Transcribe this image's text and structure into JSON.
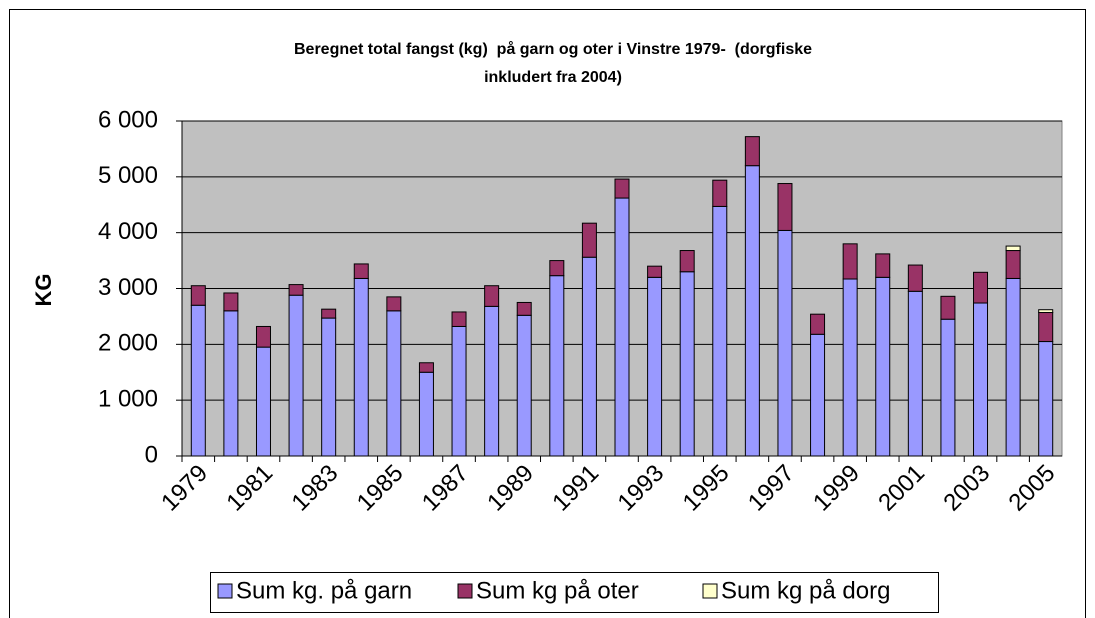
{
  "chart_data": {
    "type": "stacked-bar",
    "title": "Beregnet total fangst (kg)  på garn og oter i Vinstre 1979-  (dorgfiske inkludert fra 2004)",
    "y_label": "KG",
    "categories": [
      "1979",
      null,
      "1981",
      null,
      "1983",
      null,
      "1985",
      null,
      "1987",
      null,
      "1989",
      null,
      "1991",
      null,
      "1993",
      null,
      "1995",
      null,
      "1997",
      null,
      "1999",
      null,
      "2001",
      null,
      "2003",
      null,
      "2005"
    ],
    "series": [
      {
        "name": "Sum kg. på garn",
        "color": "#9999ff",
        "values": [
          2700,
          2600,
          1950,
          2880,
          2470,
          3180,
          2600,
          1500,
          2320,
          2680,
          2520,
          3230,
          3560,
          4620,
          3200,
          3300,
          4470,
          5200,
          4040,
          2180,
          3170,
          3200,
          2950,
          2450,
          2740,
          3180,
          2050
        ]
      },
      {
        "name": "Sum kg på oter",
        "color": "#993366",
        "values": [
          350,
          320,
          370,
          190,
          160,
          260,
          250,
          170,
          260,
          370,
          230,
          270,
          610,
          340,
          200,
          380,
          470,
          520,
          840,
          360,
          630,
          420,
          470,
          410,
          550,
          500,
          520
        ]
      },
      {
        "name": "Sum kg på dorg",
        "color": "#ffffcc",
        "values": [
          null,
          null,
          null,
          null,
          null,
          null,
          null,
          null,
          null,
          null,
          null,
          null,
          null,
          null,
          null,
          null,
          null,
          null,
          null,
          null,
          null,
          null,
          null,
          null,
          null,
          80,
          50
        ]
      }
    ],
    "ylim": [
      0,
      6000
    ],
    "yticks": [
      0,
      {
        "value": 1000,
        "label": "1 000"
      },
      {
        "value": 2000,
        "label": "2 000"
      },
      {
        "value": 3000,
        "label": "3 000"
      },
      {
        "value": 4000,
        "label": "4 000"
      },
      {
        "value": 5000,
        "label": "5 000"
      },
      {
        "value": 6000,
        "label": "6 000"
      }
    ],
    "grid": true,
    "plot_background": "#c0c0c0",
    "legend": "bottom"
  }
}
